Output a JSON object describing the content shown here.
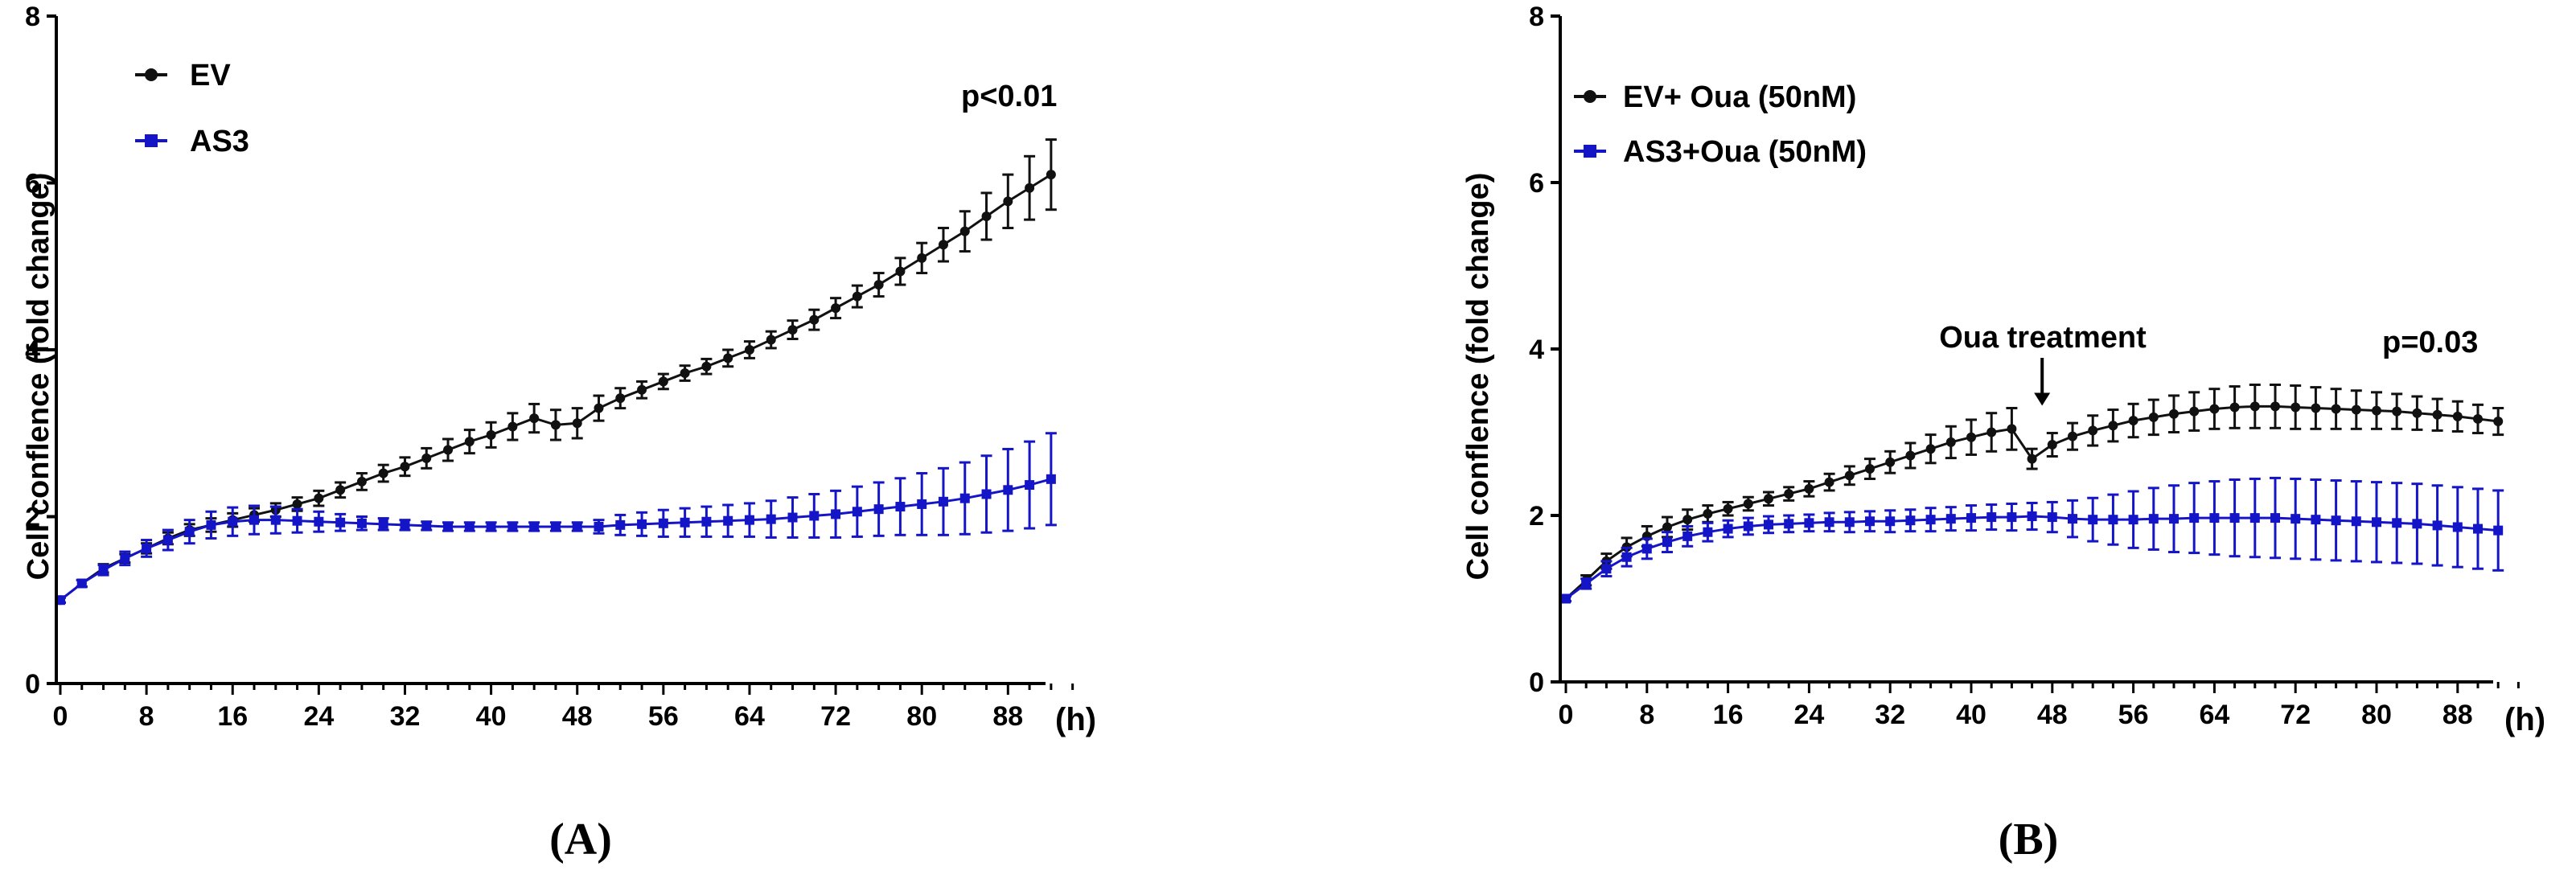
{
  "chart_data": [
    {
      "type": "line",
      "panel_label": "(A)",
      "ylabel": "Cell conflence (fold change)",
      "x_unit_label": "(h)",
      "xlim": [
        0,
        94
      ],
      "ylim": [
        0,
        8
      ],
      "x_ticks": [
        0,
        8,
        16,
        24,
        32,
        40,
        48,
        56,
        64,
        72,
        80,
        88
      ],
      "y_ticks": [
        0,
        2,
        4,
        6,
        8
      ],
      "p_value_text": "p<0.01",
      "legend_position": "top-left",
      "x": [
        0,
        2,
        4,
        6,
        8,
        10,
        12,
        14,
        16,
        18,
        20,
        22,
        24,
        26,
        28,
        30,
        32,
        34,
        36,
        38,
        40,
        42,
        44,
        46,
        48,
        50,
        52,
        54,
        56,
        58,
        60,
        62,
        64,
        66,
        68,
        70,
        72,
        74,
        76,
        78,
        80,
        82,
        84,
        86,
        88,
        90,
        92
      ],
      "series": [
        {
          "name": "EV",
          "color": "#111111",
          "marker": "circle",
          "values": [
            1.0,
            1.2,
            1.38,
            1.5,
            1.62,
            1.74,
            1.84,
            1.9,
            1.96,
            2.02,
            2.08,
            2.15,
            2.22,
            2.32,
            2.42,
            2.52,
            2.6,
            2.7,
            2.8,
            2.9,
            2.98,
            3.08,
            3.18,
            3.1,
            3.12,
            3.3,
            3.42,
            3.52,
            3.62,
            3.72,
            3.8,
            3.9,
            4.0,
            4.12,
            4.24,
            4.36,
            4.5,
            4.64,
            4.78,
            4.94,
            5.1,
            5.26,
            5.42,
            5.6,
            5.78,
            5.94,
            6.1
          ],
          "errors": [
            0.03,
            0.04,
            0.05,
            0.05,
            0.06,
            0.07,
            0.07,
            0.08,
            0.08,
            0.08,
            0.08,
            0.08,
            0.09,
            0.09,
            0.1,
            0.1,
            0.11,
            0.12,
            0.13,
            0.14,
            0.15,
            0.16,
            0.17,
            0.18,
            0.18,
            0.15,
            0.12,
            0.1,
            0.09,
            0.09,
            0.09,
            0.1,
            0.1,
            0.1,
            0.11,
            0.12,
            0.12,
            0.13,
            0.14,
            0.16,
            0.18,
            0.2,
            0.24,
            0.28,
            0.32,
            0.38,
            0.42
          ]
        },
        {
          "name": "AS3",
          "color": "#1515c8",
          "marker": "square",
          "values": [
            1.0,
            1.2,
            1.36,
            1.5,
            1.62,
            1.72,
            1.82,
            1.9,
            1.94,
            1.96,
            1.96,
            1.95,
            1.94,
            1.93,
            1.92,
            1.91,
            1.9,
            1.89,
            1.88,
            1.88,
            1.88,
            1.88,
            1.88,
            1.88,
            1.88,
            1.88,
            1.9,
            1.91,
            1.92,
            1.93,
            1.94,
            1.95,
            1.96,
            1.97,
            1.99,
            2.01,
            2.03,
            2.06,
            2.09,
            2.12,
            2.15,
            2.18,
            2.22,
            2.27,
            2.32,
            2.38,
            2.45
          ],
          "errors": [
            0.03,
            0.04,
            0.06,
            0.08,
            0.1,
            0.12,
            0.14,
            0.16,
            0.17,
            0.17,
            0.16,
            0.14,
            0.12,
            0.1,
            0.08,
            0.07,
            0.06,
            0.05,
            0.05,
            0.05,
            0.05,
            0.05,
            0.05,
            0.05,
            0.05,
            0.08,
            0.12,
            0.14,
            0.16,
            0.17,
            0.18,
            0.19,
            0.2,
            0.22,
            0.24,
            0.26,
            0.28,
            0.3,
            0.32,
            0.34,
            0.37,
            0.4,
            0.43,
            0.46,
            0.49,
            0.52,
            0.55
          ]
        }
      ]
    },
    {
      "type": "line",
      "panel_label": "(B)",
      "ylabel": "Cell conflence (fold change)",
      "x_unit_label": "(h)",
      "xlim": [
        0,
        94
      ],
      "ylim": [
        0,
        8
      ],
      "x_ticks": [
        0,
        8,
        16,
        24,
        32,
        40,
        48,
        56,
        64,
        72,
        80,
        88
      ],
      "y_ticks": [
        0,
        2,
        4,
        6,
        8
      ],
      "p_value_text": "p=0.03",
      "annotation": {
        "text": "Oua treatment",
        "x": 47,
        "arrow_to_y": 3.3
      },
      "legend_position": "top-left",
      "x": [
        0,
        2,
        4,
        6,
        8,
        10,
        12,
        14,
        16,
        18,
        20,
        22,
        24,
        26,
        28,
        30,
        32,
        34,
        36,
        38,
        40,
        42,
        44,
        46,
        48,
        50,
        52,
        54,
        56,
        58,
        60,
        62,
        64,
        66,
        68,
        70,
        72,
        74,
        76,
        78,
        80,
        82,
        84,
        86,
        88,
        90,
        92
      ],
      "series": [
        {
          "name": "EV+ Oua (50nM)",
          "color": "#111111",
          "marker": "circle",
          "values": [
            1.0,
            1.22,
            1.45,
            1.62,
            1.75,
            1.86,
            1.95,
            2.02,
            2.08,
            2.14,
            2.2,
            2.26,
            2.32,
            2.4,
            2.48,
            2.56,
            2.64,
            2.72,
            2.8,
            2.88,
            2.94,
            3.0,
            3.04,
            2.68,
            2.85,
            2.95,
            3.02,
            3.08,
            3.14,
            3.18,
            3.22,
            3.25,
            3.28,
            3.3,
            3.31,
            3.31,
            3.3,
            3.29,
            3.28,
            3.27,
            3.26,
            3.25,
            3.23,
            3.21,
            3.19,
            3.16,
            3.13
          ],
          "errors": [
            0.03,
            0.06,
            0.09,
            0.11,
            0.12,
            0.12,
            0.12,
            0.1,
            0.08,
            0.08,
            0.08,
            0.08,
            0.09,
            0.1,
            0.11,
            0.12,
            0.13,
            0.15,
            0.17,
            0.19,
            0.21,
            0.23,
            0.25,
            0.12,
            0.14,
            0.16,
            0.18,
            0.19,
            0.2,
            0.21,
            0.22,
            0.23,
            0.24,
            0.25,
            0.26,
            0.26,
            0.26,
            0.25,
            0.24,
            0.23,
            0.22,
            0.21,
            0.2,
            0.19,
            0.18,
            0.17,
            0.16
          ]
        },
        {
          "name": "AS3+Oua (50nM)",
          "color": "#1515c8",
          "marker": "square",
          "values": [
            1.0,
            1.18,
            1.36,
            1.5,
            1.6,
            1.68,
            1.75,
            1.8,
            1.84,
            1.87,
            1.89,
            1.9,
            1.91,
            1.92,
            1.92,
            1.93,
            1.93,
            1.94,
            1.95,
            1.96,
            1.97,
            1.98,
            1.98,
            1.99,
            1.98,
            1.96,
            1.95,
            1.95,
            1.95,
            1.96,
            1.96,
            1.97,
            1.97,
            1.97,
            1.97,
            1.97,
            1.96,
            1.95,
            1.94,
            1.93,
            1.92,
            1.91,
            1.9,
            1.88,
            1.86,
            1.84,
            1.82
          ],
          "errors": [
            0.03,
            0.06,
            0.09,
            0.11,
            0.12,
            0.12,
            0.12,
            0.11,
            0.1,
            0.1,
            0.1,
            0.1,
            0.1,
            0.11,
            0.12,
            0.12,
            0.13,
            0.13,
            0.14,
            0.14,
            0.15,
            0.15,
            0.16,
            0.16,
            0.18,
            0.22,
            0.26,
            0.3,
            0.34,
            0.37,
            0.4,
            0.42,
            0.44,
            0.46,
            0.47,
            0.48,
            0.48,
            0.48,
            0.48,
            0.48,
            0.48,
            0.48,
            0.48,
            0.48,
            0.48,
            0.48,
            0.48
          ]
        }
      ]
    }
  ]
}
